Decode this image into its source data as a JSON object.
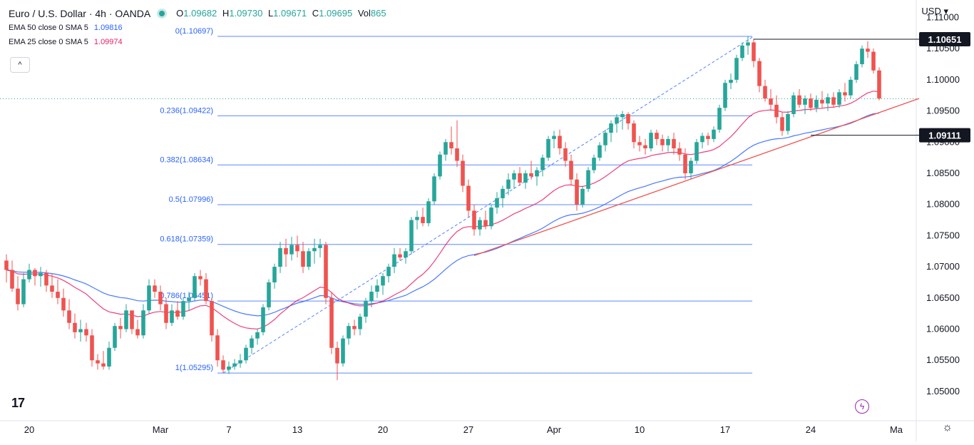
{
  "legend": {
    "title": "Euro / U.S. Dollar · 4h · OANDA",
    "o_label": "O",
    "o_value": "1.09682",
    "h_label": "H",
    "h_value": "1.09730",
    "l_label": "L",
    "l_value": "1.09671",
    "c_label": "C",
    "c_value": "1.09695",
    "vol_label": "Vol",
    "vol_value": "865",
    "ema50_label": "EMA 50 close 0 SMA 5",
    "ema50_value": "1.09816",
    "ema25_label": "EMA 25 close 0 SMA 5",
    "ema25_value": "1.09974",
    "collapse_icon": "^"
  },
  "currency_label": "USD ▾",
  "logo_text": "17",
  "settings_icon": "☼",
  "bolt_icon": "ϟ",
  "colors": {
    "up": "#26a69a",
    "down": "#ef5350",
    "ema50": "#2962ff",
    "ema25": "#e91e63",
    "fib": "#2962ff",
    "trend": "#ef5350",
    "price_dot": "#26a69a"
  },
  "chart_data": {
    "type": "candlestick",
    "title": "Euro / U.S. Dollar · 4h · OANDA",
    "ylim": [
      1.0453,
      1.1128
    ],
    "y_ticks": [
      "1.11000",
      "1.10500",
      "1.10000",
      "1.09500",
      "1.09000",
      "1.08500",
      "1.08000",
      "1.07500",
      "1.07000",
      "1.06500",
      "1.06000",
      "1.05500",
      "1.05000"
    ],
    "y_tick_values": [
      1.11,
      1.105,
      1.1,
      1.095,
      1.09,
      1.085,
      1.08,
      1.075,
      1.07,
      1.065,
      1.06,
      1.055,
      1.05
    ],
    "x_tick_labels": [
      "20",
      "Mar",
      "7",
      "13",
      "20",
      "27",
      "Apr",
      "10",
      "17",
      "24",
      "Ma"
    ],
    "x_tick_index": [
      4,
      27,
      39,
      51,
      66,
      81,
      96,
      111,
      126,
      141,
      156
    ],
    "n_slots": 160,
    "candles": [
      [
        1.071,
        1.072,
        1.0675,
        1.0695
      ],
      [
        1.0695,
        1.071,
        1.066,
        1.0665
      ],
      [
        1.0665,
        1.0685,
        1.063,
        1.064
      ],
      [
        1.064,
        1.069,
        1.0635,
        1.068
      ],
      [
        1.068,
        1.0705,
        1.0675,
        1.0695
      ],
      [
        1.0695,
        1.0698,
        1.067,
        1.0685
      ],
      [
        1.0685,
        1.07,
        1.0668,
        1.069
      ],
      [
        1.069,
        1.0695,
        1.066,
        1.067
      ],
      [
        1.067,
        1.069,
        1.065,
        1.066
      ],
      [
        1.066,
        1.068,
        1.064,
        1.065
      ],
      [
        1.065,
        1.0665,
        1.062,
        1.063
      ],
      [
        1.063,
        1.0648,
        1.06,
        1.061
      ],
      [
        1.061,
        1.0625,
        1.0585,
        1.0595
      ],
      [
        1.0595,
        1.0615,
        1.058,
        1.06
      ],
      [
        1.06,
        1.061,
        1.058,
        1.059
      ],
      [
        1.059,
        1.06,
        1.054,
        1.055
      ],
      [
        1.055,
        1.056,
        1.0535,
        1.0545
      ],
      [
        1.0545,
        1.0565,
        1.0535,
        1.054
      ],
      [
        1.054,
        1.058,
        1.0535,
        1.057
      ],
      [
        1.057,
        1.061,
        1.0565,
        1.0605
      ],
      [
        1.0605,
        1.0618,
        1.0585,
        1.06
      ],
      [
        1.06,
        1.064,
        1.0595,
        1.063
      ],
      [
        1.063,
        1.0625,
        1.0592,
        1.06
      ],
      [
        1.06,
        1.0615,
        1.0585,
        1.059
      ],
      [
        1.059,
        1.064,
        1.0585,
        1.063
      ],
      [
        1.063,
        1.068,
        1.0625,
        1.067
      ],
      [
        1.067,
        1.068,
        1.065,
        1.066
      ],
      [
        1.066,
        1.067,
        1.063,
        1.064
      ],
      [
        1.064,
        1.065,
        1.06,
        1.061
      ],
      [
        1.061,
        1.064,
        1.0605,
        1.063
      ],
      [
        1.063,
        1.0645,
        1.0615,
        1.062
      ],
      [
        1.062,
        1.065,
        1.0615,
        1.0645
      ],
      [
        1.0645,
        1.066,
        1.063,
        1.065
      ],
      [
        1.065,
        1.069,
        1.0645,
        1.0685
      ],
      [
        1.0685,
        1.0695,
        1.067,
        1.068
      ],
      [
        1.068,
        1.069,
        1.064,
        1.0645
      ],
      [
        1.0645,
        1.065,
        1.058,
        1.059
      ],
      [
        1.059,
        1.06,
        1.054,
        1.055
      ],
      [
        1.055,
        1.0558,
        1.053,
        1.0535
      ],
      [
        1.0535,
        1.0548,
        1.0528,
        1.054
      ],
      [
        1.054,
        1.0552,
        1.0535,
        1.0545
      ],
      [
        1.0545,
        1.056,
        1.0538,
        1.055
      ],
      [
        1.055,
        1.0575,
        1.0545,
        1.057
      ],
      [
        1.057,
        1.059,
        1.056,
        1.0585
      ],
      [
        1.0585,
        1.06,
        1.0575,
        1.0595
      ],
      [
        1.0595,
        1.064,
        1.059,
        1.0635
      ],
      [
        1.0635,
        1.068,
        1.063,
        1.0675
      ],
      [
        1.0675,
        1.0705,
        1.0665,
        1.07
      ],
      [
        1.07,
        1.074,
        1.069,
        1.073
      ],
      [
        1.073,
        1.0745,
        1.07,
        1.072
      ],
      [
        1.072,
        1.0748,
        1.071,
        1.0735
      ],
      [
        1.0735,
        1.075,
        1.0715,
        1.0725
      ],
      [
        1.0725,
        1.074,
        1.069,
        1.07
      ],
      [
        1.07,
        1.073,
        1.0695,
        1.0725
      ],
      [
        1.0725,
        1.0745,
        1.0705,
        1.073
      ],
      [
        1.073,
        1.0745,
        1.0715,
        1.0735
      ],
      [
        1.0735,
        1.074,
        1.064,
        1.065
      ],
      [
        1.065,
        1.066,
        1.056,
        1.057
      ],
      [
        1.057,
        1.058,
        1.0518,
        1.0545
      ],
      [
        1.0545,
        1.059,
        1.054,
        1.0585
      ],
      [
        1.0585,
        1.061,
        1.0575,
        1.0605
      ],
      [
        1.0605,
        1.0615,
        1.059,
        1.06
      ],
      [
        1.06,
        1.0625,
        1.059,
        1.062
      ],
      [
        1.062,
        1.065,
        1.061,
        1.0645
      ],
      [
        1.0645,
        1.067,
        1.0635,
        1.066
      ],
      [
        1.066,
        1.068,
        1.065,
        1.067
      ],
      [
        1.067,
        1.069,
        1.0655,
        1.0685
      ],
      [
        1.0685,
        1.0705,
        1.0675,
        1.07
      ],
      [
        1.07,
        1.073,
        1.069,
        1.072
      ],
      [
        1.072,
        1.073,
        1.071,
        1.0715
      ],
      [
        1.0715,
        1.073,
        1.0705,
        1.0725
      ],
      [
        1.0725,
        1.078,
        1.072,
        1.0775
      ],
      [
        1.0775,
        1.079,
        1.076,
        1.078
      ],
      [
        1.078,
        1.0795,
        1.0765,
        1.077
      ],
      [
        1.077,
        1.081,
        1.0765,
        1.0805
      ],
      [
        1.0805,
        1.085,
        1.08,
        1.0845
      ],
      [
        1.0845,
        1.0885,
        1.084,
        1.088
      ],
      [
        1.088,
        1.0905,
        1.087,
        1.09
      ],
      [
        1.09,
        1.0925,
        1.088,
        1.089
      ],
      [
        1.089,
        1.0935,
        1.086,
        1.087
      ],
      [
        1.087,
        1.088,
        1.082,
        1.083
      ],
      [
        1.083,
        1.084,
        1.078,
        1.079
      ],
      [
        1.079,
        1.08,
        1.075,
        1.076
      ],
      [
        1.076,
        1.078,
        1.075,
        1.0775
      ],
      [
        1.0775,
        1.079,
        1.076,
        1.0765
      ],
      [
        1.0765,
        1.08,
        1.076,
        1.0795
      ],
      [
        1.0795,
        1.082,
        1.0785,
        1.081
      ],
      [
        1.081,
        1.083,
        1.0795,
        1.0825
      ],
      [
        1.0825,
        1.085,
        1.0815,
        1.084
      ],
      [
        1.084,
        1.0855,
        1.0825,
        1.085
      ],
      [
        1.085,
        1.086,
        1.083,
        1.0835
      ],
      [
        1.0835,
        1.0855,
        1.0825,
        1.085
      ],
      [
        1.085,
        1.087,
        1.084,
        1.0845
      ],
      [
        1.0845,
        1.086,
        1.083,
        1.0855
      ],
      [
        1.0855,
        1.088,
        1.0845,
        1.0875
      ],
      [
        1.0875,
        1.091,
        1.087,
        1.0905
      ],
      [
        1.0905,
        1.0918,
        1.089,
        1.091
      ],
      [
        1.091,
        1.092,
        1.088,
        1.089
      ],
      [
        1.089,
        1.09,
        1.086,
        1.087
      ],
      [
        1.087,
        1.088,
        1.083,
        1.084
      ],
      [
        1.084,
        1.085,
        1.079,
        1.08
      ],
      [
        1.08,
        1.083,
        1.0795,
        1.0825
      ],
      [
        1.0825,
        1.086,
        1.082,
        1.0855
      ],
      [
        1.0855,
        1.088,
        1.085,
        1.0875
      ],
      [
        1.0875,
        1.09,
        1.087,
        1.0895
      ],
      [
        1.0895,
        1.092,
        1.0885,
        1.0915
      ],
      [
        1.0915,
        1.0935,
        1.09,
        1.093
      ],
      [
        1.093,
        1.0945,
        1.0915,
        1.094
      ],
      [
        1.094,
        1.095,
        1.092,
        1.0945
      ],
      [
        1.0945,
        1.0948,
        1.092,
        1.093
      ],
      [
        1.093,
        1.0935,
        1.089,
        1.09
      ],
      [
        1.09,
        1.091,
        1.0885,
        1.0895
      ],
      [
        1.0895,
        1.0905,
        1.088,
        1.089
      ],
      [
        1.089,
        1.092,
        1.0885,
        1.0915
      ],
      [
        1.0915,
        1.092,
        1.0895,
        1.0905
      ],
      [
        1.0905,
        1.0912,
        1.0885,
        1.0895
      ],
      [
        1.0895,
        1.091,
        1.0885,
        1.0905
      ],
      [
        1.0905,
        1.0915,
        1.088,
        1.089
      ],
      [
        1.089,
        1.09,
        1.087,
        1.088
      ],
      [
        1.088,
        1.089,
        1.084,
        1.085
      ],
      [
        1.085,
        1.0875,
        1.084,
        1.087
      ],
      [
        1.087,
        1.0905,
        1.0865,
        1.09
      ],
      [
        1.09,
        1.0915,
        1.089,
        1.091
      ],
      [
        1.091,
        1.0915,
        1.0895,
        1.0905
      ],
      [
        1.0905,
        1.0925,
        1.09,
        1.092
      ],
      [
        1.092,
        1.096,
        1.0915,
        1.0955
      ],
      [
        1.0955,
        1.1,
        1.095,
        1.0995
      ],
      [
        1.0995,
        1.101,
        1.0985,
        1.1
      ],
      [
        1.1,
        1.104,
        1.0995,
        1.1035
      ],
      [
        1.1035,
        1.106,
        1.103,
        1.1055
      ],
      [
        1.1055,
        1.107,
        1.104,
        1.106
      ],
      [
        1.106,
        1.1066,
        1.102,
        1.103
      ],
      [
        1.103,
        1.1035,
        1.098,
        1.099
      ],
      [
        1.099,
        1.1,
        1.0965,
        1.097
      ],
      [
        1.097,
        1.0985,
        1.095,
        1.096
      ],
      [
        1.096,
        1.0975,
        1.093,
        1.094
      ],
      [
        1.094,
        1.0948,
        1.091,
        1.0918
      ],
      [
        1.0918,
        1.095,
        1.0912,
        1.0945
      ],
      [
        1.0945,
        1.098,
        1.094,
        1.0975
      ],
      [
        1.0975,
        1.0985,
        1.0955,
        1.096
      ],
      [
        1.096,
        1.0975,
        1.0945,
        1.097
      ],
      [
        1.097,
        1.0978,
        1.095,
        1.0955
      ],
      [
        1.0955,
        1.0975,
        1.0948,
        1.0968
      ],
      [
        1.0968,
        1.0982,
        1.0955,
        1.0962
      ],
      [
        1.0962,
        1.0978,
        1.095,
        1.0972
      ],
      [
        1.0972,
        1.098,
        1.0955,
        1.096
      ],
      [
        1.096,
        1.0985,
        1.0955,
        1.098
      ],
      [
        1.098,
        1.0995,
        1.0965,
        1.0975
      ],
      [
        1.0975,
        1.1005,
        1.097,
        1.1
      ],
      [
        1.1,
        1.103,
        1.0995,
        1.1025
      ],
      [
        1.1025,
        1.1055,
        1.102,
        1.105
      ],
      [
        1.105,
        1.1062,
        1.1035,
        1.1045
      ],
      [
        1.1045,
        1.105,
        1.101,
        1.1015
      ],
      [
        1.1015,
        1.102,
        1.0967,
        1.097
      ]
    ],
    "ema_periods": {
      "ema50": 50,
      "ema25": 25
    },
    "current_price": 1.09695,
    "fib_levels": [
      {
        "label": "0(1.10697)",
        "value": 1.10697
      },
      {
        "label": "0.236(1.09422)",
        "value": 1.09422
      },
      {
        "label": "0.382(1.08634)",
        "value": 1.08634
      },
      {
        "label": "0.5(1.07996)",
        "value": 1.07996
      },
      {
        "label": "0.618(1.07359)",
        "value": 1.07359
      },
      {
        "label": "0.786(1.06451)",
        "value": 1.06451
      },
      {
        "label": "1(1.05295)",
        "value": 1.05295
      }
    ],
    "fib_slots": [
      38,
      131
    ],
    "fib_trend_line": {
      "from": [
        38,
        1.05295
      ],
      "to": [
        131,
        1.10697
      ]
    },
    "trend_line": {
      "from": [
        82,
        1.0718
      ],
      "to": [
        160,
        1.097
      ]
    },
    "resistance_line": {
      "from": [
        131,
        1.10651
      ],
      "to": [
        162,
        1.10651
      ],
      "label": "1.10651"
    },
    "support_line": {
      "from": [
        141,
        1.09111
      ],
      "to": [
        162,
        1.09111
      ],
      "label": "1.09111"
    }
  }
}
